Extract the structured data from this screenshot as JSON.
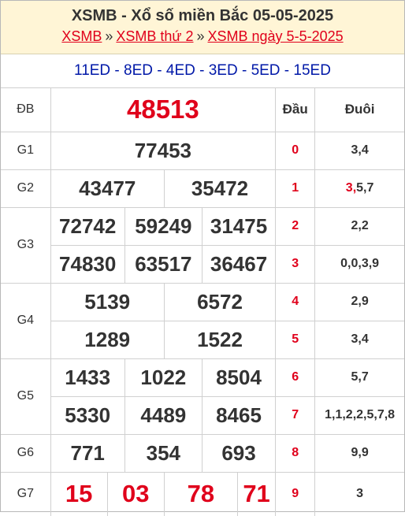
{
  "header": {
    "title": "XSMB - Xổ số miền Bắc 05-05-2025",
    "breadcrumb": [
      "XSMB",
      "XSMB thứ 2",
      "XSMB ngày 5-5-2025"
    ],
    "separator": "»"
  },
  "codes": "11ED - 8ED - 4ED - 3ED - 5ED - 15ED",
  "table": {
    "dau_header": "Đầu",
    "duoi_header": "Đuôi",
    "db": {
      "label": "ĐB",
      "value": "48513"
    },
    "g1": {
      "label": "G1",
      "values": [
        "77453"
      ]
    },
    "g2": {
      "label": "G2",
      "values": [
        "43477",
        "35472"
      ]
    },
    "g3": {
      "label": "G3",
      "values": [
        "72742",
        "59249",
        "31475",
        "74830",
        "63517",
        "36467"
      ]
    },
    "g4": {
      "label": "G4",
      "values": [
        "5139",
        "6572",
        "1289",
        "1522"
      ]
    },
    "g5": {
      "label": "G5",
      "values": [
        "1433",
        "1022",
        "8504",
        "5330",
        "4489",
        "8465"
      ]
    },
    "g6": {
      "label": "G6",
      "values": [
        "771",
        "354",
        "693"
      ]
    },
    "g7": {
      "label": "G7",
      "values": [
        "15",
        "03",
        "78",
        "71"
      ]
    },
    "dau": [
      "0",
      "1",
      "2",
      "3",
      "4",
      "5",
      "6",
      "7",
      "8",
      "9"
    ],
    "duoi": [
      "3,4",
      "5,7",
      "2,2",
      "0,0,3,9",
      "2,9",
      "3,4",
      "5,7",
      "1,1,2,2,5,7,8",
      "9,9",
      "3"
    ],
    "duoi_highlight_1": "3,",
    "highlight_color": "#e0001b"
  }
}
